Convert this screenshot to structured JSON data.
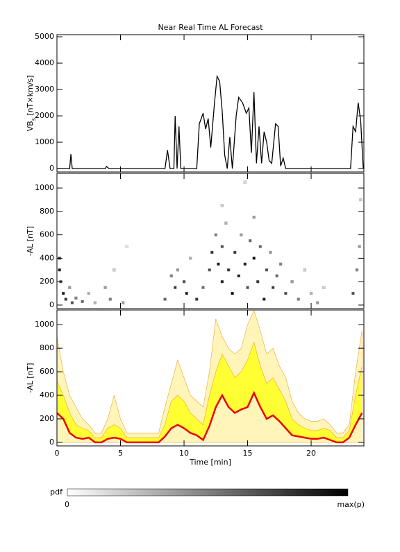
{
  "chart_data": [
    {
      "type": "line",
      "title": "Near Real Time AL Forecast",
      "ylabel": [
        "VB",
        "s",
        " [nT×km/s]"
      ],
      "x": [
        0,
        1.0,
        1.1,
        1.2,
        3.8,
        3.9,
        4.1,
        8.5,
        8.7,
        8.9,
        9.2,
        9.3,
        9.45,
        9.6,
        9.75,
        11,
        11.2,
        11.5,
        11.7,
        11.9,
        12.1,
        12.4,
        12.6,
        12.8,
        13.0,
        13.2,
        13.4,
        13.6,
        13.8,
        14.1,
        14.3,
        14.6,
        14.9,
        15.1,
        15.3,
        15.5,
        15.7,
        15.9,
        16.1,
        16.3,
        16.5,
        16.7,
        16.9,
        17.2,
        17.4,
        17.6,
        17.8,
        18.0,
        23.1,
        23.3,
        23.5,
        23.7,
        23.9,
        24.1
      ],
      "series": [
        {
          "color": "#000000",
          "values": [
            0,
            0,
            550,
            0,
            0,
            80,
            0,
            0,
            700,
            0,
            0,
            2000,
            0,
            1600,
            0,
            0,
            1700,
            2100,
            1500,
            1900,
            800,
            2500,
            3500,
            3300,
            2200,
            500,
            0,
            1200,
            0,
            2000,
            2700,
            2500,
            2100,
            2300,
            600,
            2900,
            200,
            1600,
            200,
            1400,
            1000,
            300,
            200,
            1700,
            1600,
            100,
            400,
            0,
            0,
            1600,
            1400,
            2500,
            1800,
            0
          ]
        }
      ],
      "xlim": [
        0,
        24.15
      ],
      "xticks": [
        0,
        5,
        10,
        15,
        20
      ],
      "ylim": [
        -130,
        5080
      ],
      "yticks": [
        0,
        1000,
        2000,
        3000,
        4000,
        5000
      ]
    },
    {
      "type": "heatmap",
      "ylabel": "-AL [nT]",
      "x": [
        0.2,
        0.2,
        0.3,
        0.5,
        0.7,
        1,
        1.2,
        1.5,
        2,
        2.5,
        3,
        3.8,
        4.2,
        4.5,
        5.2,
        5.5,
        8.5,
        9,
        9.3,
        9.5,
        10,
        10.2,
        10.5,
        11,
        11.5,
        12,
        12.2,
        12.5,
        12.7,
        13,
        13,
        13.3,
        13.5,
        13.8,
        14,
        14.3,
        14.5,
        14.8,
        15,
        15.2,
        15.5,
        15.5,
        15.8,
        16,
        16.3,
        16.5,
        16.8,
        17,
        17.3,
        17.6,
        18,
        18.5,
        19,
        19.5,
        20,
        20.5,
        21,
        23.3,
        23.6,
        23.8,
        23.9,
        14.8,
        13.0
      ],
      "y": [
        400,
        300,
        200,
        100,
        50,
        150,
        20,
        60,
        30,
        100,
        20,
        150,
        50,
        300,
        20,
        500,
        50,
        250,
        150,
        300,
        200,
        100,
        400,
        50,
        150,
        300,
        450,
        600,
        350,
        500,
        200,
        700,
        300,
        100,
        450,
        250,
        600,
        350,
        150,
        550,
        750,
        400,
        200,
        500,
        50,
        300,
        450,
        150,
        250,
        350,
        100,
        200,
        50,
        300,
        100,
        20,
        150,
        100,
        300,
        500,
        900,
        1050,
        850
      ],
      "p": [
        0.8,
        0.9,
        0.7,
        0.9,
        0.8,
        0.4,
        0.7,
        0.5,
        0.6,
        0.3,
        0.3,
        0.4,
        0.5,
        0.2,
        0.4,
        0.1,
        0.6,
        0.5,
        0.8,
        0.4,
        0.7,
        0.9,
        0.3,
        0.8,
        0.6,
        0.7,
        0.8,
        0.5,
        0.9,
        0.7,
        0.9,
        0.3,
        0.8,
        1,
        0.8,
        0.9,
        0.4,
        0.9,
        0.7,
        0.6,
        0.4,
        1,
        0.8,
        0.6,
        0.9,
        0.7,
        0.4,
        0.8,
        0.6,
        0.5,
        0.7,
        0.4,
        0.5,
        0.2,
        0.3,
        0.4,
        0.2,
        0.7,
        0.5,
        0.4,
        0.2,
        0.15,
        0.2
      ],
      "xlim": [
        0,
        24.15
      ],
      "xticks": [
        0,
        5,
        10,
        15,
        20
      ],
      "ylim": [
        -30,
        1125
      ],
      "yticks": [
        0,
        200,
        400,
        600,
        800,
        1000
      ]
    },
    {
      "type": "area",
      "ylabel": "-AL [nT]",
      "xlabel": "Time [min]",
      "x": [
        0,
        0.5,
        1,
        1.5,
        2,
        2.5,
        3,
        3.5,
        4,
        4.5,
        5,
        5.5,
        6,
        6.5,
        7,
        7.5,
        8,
        8.5,
        9,
        9.5,
        10,
        10.5,
        11,
        11.5,
        12,
        12.5,
        13,
        13.5,
        14,
        14.5,
        15,
        15.5,
        16,
        16.5,
        17,
        17.5,
        18,
        18.5,
        19,
        19.5,
        20,
        20.5,
        21,
        21.5,
        22,
        22.5,
        23,
        23.5,
        24
      ],
      "series": [
        {
          "color": "#fff5b8",
          "values": [
            900,
            600,
            400,
            300,
            200,
            150,
            80,
            80,
            200,
            400,
            200,
            80,
            80,
            80,
            80,
            80,
            80,
            300,
            500,
            700,
            550,
            400,
            350,
            300,
            600,
            1050,
            900,
            800,
            750,
            800,
            1000,
            1120,
            950,
            750,
            800,
            650,
            550,
            350,
            250,
            200,
            180,
            180,
            200,
            150,
            80,
            80,
            150,
            600,
            950
          ]
        },
        {
          "color": "#ffff33",
          "values": [
            520,
            400,
            250,
            150,
            120,
            100,
            40,
            40,
            120,
            150,
            120,
            40,
            40,
            40,
            40,
            40,
            40,
            150,
            350,
            400,
            350,
            250,
            200,
            150,
            400,
            600,
            750,
            650,
            550,
            600,
            700,
            850,
            650,
            500,
            550,
            450,
            350,
            200,
            150,
            120,
            100,
            100,
            120,
            100,
            40,
            40,
            100,
            400,
            650
          ]
        },
        {
          "color": "#ee0000",
          "values": [
            250,
            200,
            80,
            40,
            30,
            40,
            0,
            0,
            30,
            40,
            30,
            0,
            0,
            0,
            0,
            0,
            0,
            50,
            120,
            150,
            120,
            80,
            60,
            20,
            140,
            300,
            400,
            300,
            250,
            280,
            300,
            420,
            300,
            200,
            230,
            180,
            120,
            60,
            50,
            40,
            30,
            30,
            40,
            20,
            0,
            0,
            40,
            150,
            250
          ]
        }
      ],
      "xlim": [
        0,
        24.15
      ],
      "xticks": [
        0,
        5,
        10,
        15,
        20
      ],
      "ylim": [
        -30,
        1125
      ],
      "yticks": [
        0,
        200,
        400,
        600,
        800,
        1000
      ]
    },
    {
      "type": "colorbar",
      "label": "pdf",
      "tick_labels": [
        "0",
        "max(p)"
      ]
    }
  ]
}
